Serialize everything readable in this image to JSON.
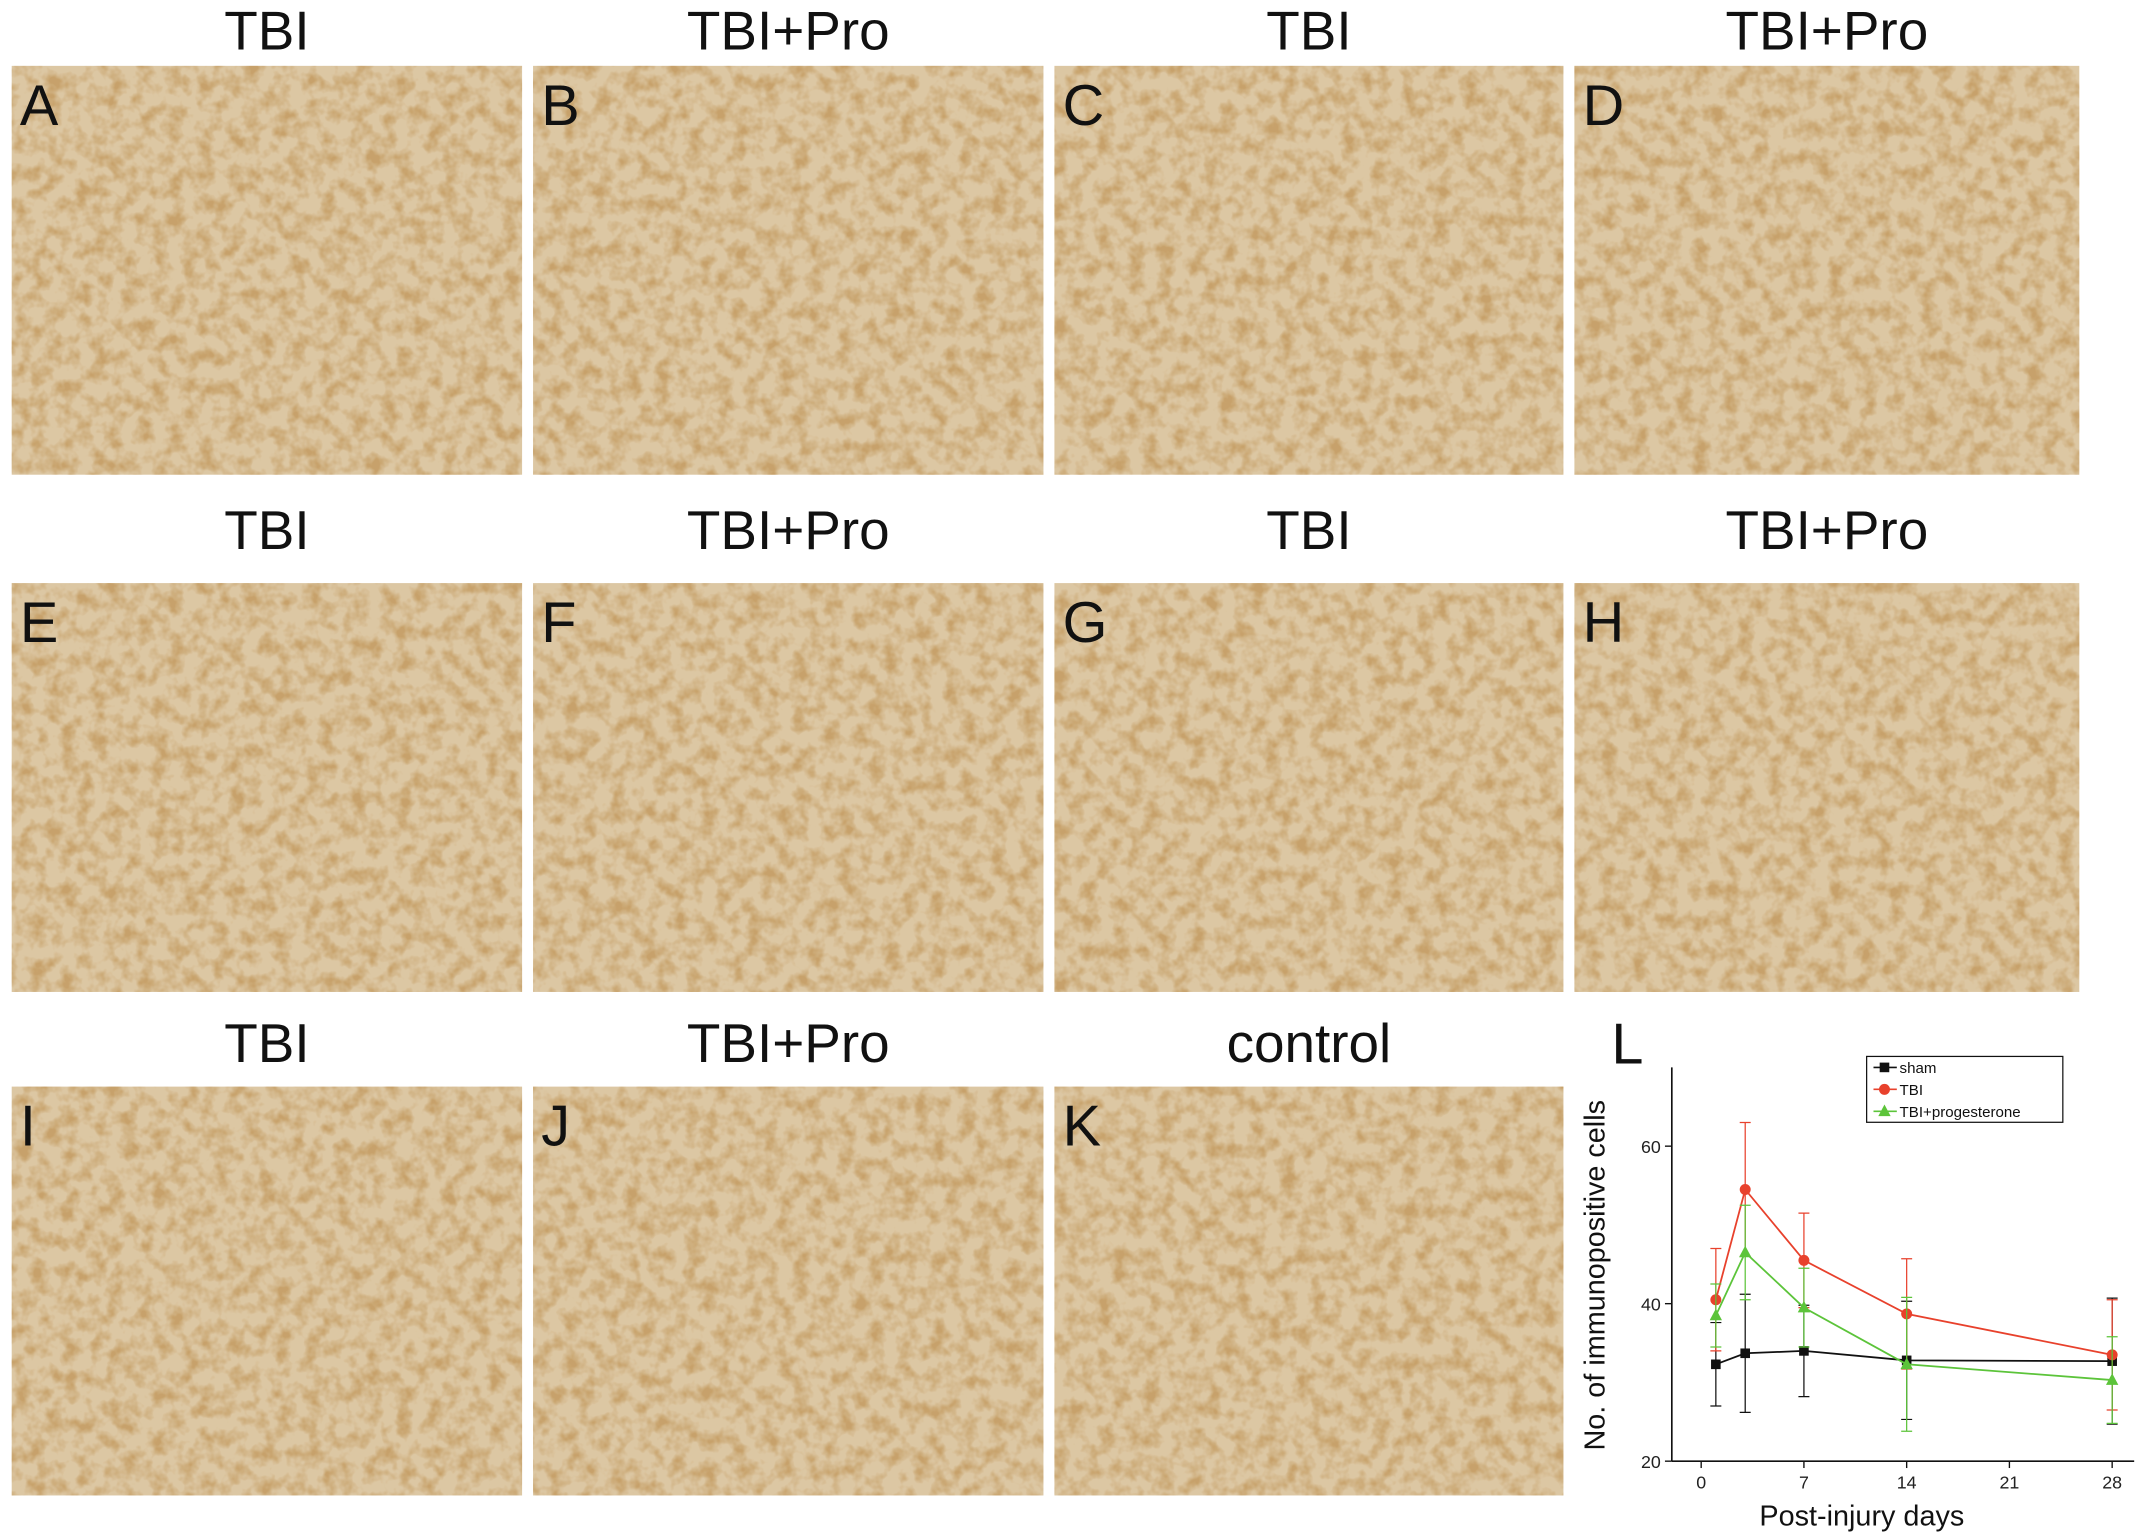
{
  "panels": [
    {
      "title": "TBI",
      "letter": "A"
    },
    {
      "title": "TBI+Pro",
      "letter": "B"
    },
    {
      "title": "TBI",
      "letter": "C"
    },
    {
      "title": "TBI+Pro",
      "letter": "D"
    },
    {
      "title": "TBI",
      "letter": "E"
    },
    {
      "title": "TBI+Pro",
      "letter": "F"
    },
    {
      "title": "TBI",
      "letter": "G"
    },
    {
      "title": "TBI+Pro",
      "letter": "H"
    },
    {
      "title": "TBI",
      "letter": "I"
    },
    {
      "title": "TBI+Pro",
      "letter": "J"
    },
    {
      "title": "control",
      "letter": "K"
    }
  ],
  "chart_data": {
    "type": "line",
    "letter": "L",
    "x_label": "Post-injury days",
    "y_label": "No. of immunopositive cells",
    "x": [
      1,
      3,
      7,
      14,
      28
    ],
    "series": [
      {
        "name": "sham",
        "color": "#111111",
        "marker": "square",
        "values": [
          32.3,
          33.7,
          34,
          32.8,
          32.7
        ],
        "errors": [
          5.3,
          7.5,
          5.8,
          7.5,
          8
        ]
      },
      {
        "name": "TBI",
        "color": "#e8412c",
        "marker": "circle",
        "values": [
          40.5,
          54.5,
          45.5,
          38.7,
          33.5
        ],
        "errors": [
          6.5,
          8.5,
          6,
          7,
          7
        ]
      },
      {
        "name": "TBI+progesterone",
        "color": "#5cc43a",
        "marker": "triangle",
        "values": [
          38.5,
          46.5,
          39.5,
          32.3,
          30.3
        ],
        "errors": [
          4,
          6,
          5,
          8.5,
          5.5
        ]
      }
    ],
    "xlim": [
      -2,
      29.5
    ],
    "ylim": [
      20,
      70
    ],
    "xticks": [
      0,
      7,
      14,
      21,
      28
    ],
    "yticks": [
      20,
      40,
      60
    ]
  }
}
